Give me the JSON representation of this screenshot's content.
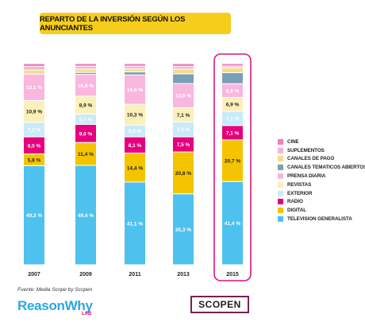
{
  "title": "REPARTO DE LA INVERSIÓN SEGÚN LOS ANUNCIANTES",
  "source": "Fuente: Media Scope by Scopen",
  "logos": {
    "reasonwhy": "ReasonWhy",
    "lab": "LAB",
    "scopen": "SCOPEN"
  },
  "legend": [
    {
      "name": "CINE",
      "color": "#f27db9"
    },
    {
      "name": "SUPLEMENTOS",
      "color": "#f7b2d3"
    },
    {
      "name": "CANALES DE PAGO",
      "color": "#f4dc8a"
    },
    {
      "name": "CANALES TEMATICOS ABIERTOS",
      "color": "#7a9fb8"
    },
    {
      "name": "PRENSA DIARIA",
      "color": "#f9b6de"
    },
    {
      "name": "REVISTAS",
      "color": "#fbf0b9"
    },
    {
      "name": "EXTERIOR",
      "color": "#c9eaf8"
    },
    {
      "name": "RADIO",
      "color": "#e6007e"
    },
    {
      "name": "DIGITAL",
      "color": "#f5c400"
    },
    {
      "name": "TELEVISION GENERALISTA",
      "color": "#4fc1ee"
    }
  ],
  "chart_data": {
    "type": "bar",
    "stacked": true,
    "normalized": true,
    "title": "REPARTO DE LA INVERSIÓN SEGÚN LOS ANUNCIANTES",
    "categories": [
      "2007",
      "2009",
      "2011",
      "2013",
      "2015"
    ],
    "highlight_category": "2015",
    "series": [
      {
        "name": "TELEVISION GENERALISTA",
        "color": "#4fc1ee",
        "values": [
          49.3,
          49.4,
          41.1,
          35.3,
          41.4
        ],
        "labels": [
          "49,3 %",
          "49,4 %",
          "41,1 %",
          "35,3 %",
          "41,4 %"
        ]
      },
      {
        "name": "DIGITAL",
        "color": "#f5c400",
        "values": [
          5.8,
          11.4,
          14.4,
          20.8,
          20.7
        ],
        "labels": [
          "5,8 %",
          "11,4 %",
          "14,4 %",
          "20,8 %",
          "20,7 %"
        ]
      },
      {
        "name": "RADIO",
        "color": "#e6007e",
        "values": [
          8.5,
          9.0,
          8.1,
          7.5,
          7.1
        ],
        "labels": [
          "8,5 %",
          "9,0 %",
          "8,1 %",
          "7,5 %",
          "7,1 %"
        ]
      },
      {
        "name": "EXTERIOR",
        "color": "#c9eaf8",
        "values": [
          7.2,
          5.1,
          5.9,
          7.4,
          7.1
        ],
        "labels": [
          "7,2 %",
          "5,1 %",
          "5,9 %",
          "7,4 %",
          "7,1 %"
        ]
      },
      {
        "name": "REVISTAS",
        "color": "#fbf0b9",
        "values": [
          10.9,
          8.9,
          10.3,
          7.1,
          6.9
        ],
        "labels": [
          "10,9 %",
          "8,9 %",
          "10,3 %",
          "7,1 %",
          "6,9 %"
        ]
      },
      {
        "name": "PRENSA DIARIA",
        "color": "#f9b6de",
        "values": [
          13.1,
          10.8,
          14.6,
          12.0,
          6.8
        ],
        "labels": [
          "13,1 %",
          "10,8 %",
          "14,6 %",
          "12,0 %",
          "6,8 %"
        ]
      },
      {
        "name": "CANALES TEMATICOS ABIERTOS",
        "color": "#7a9fb8",
        "values": [
          0.0,
          1.0,
          1.5,
          4.8,
          5.5
        ],
        "labels": [
          "",
          "",
          "",
          "",
          ""
        ]
      },
      {
        "name": "CANALES DE PAGO",
        "color": "#f4dc8a",
        "values": [
          2.0,
          1.7,
          1.5,
          2.4,
          2.4
        ],
        "labels": [
          "",
          "",
          "",
          "",
          ""
        ]
      },
      {
        "name": "SUPLEMENTOS",
        "color": "#f7b2d3",
        "values": [
          1.8,
          1.4,
          1.3,
          1.3,
          0.9
        ],
        "labels": [
          "",
          "",
          "",
          "",
          ""
        ]
      },
      {
        "name": "CINE",
        "color": "#f27db9",
        "values": [
          1.4,
          1.3,
          1.3,
          1.4,
          1.2
        ],
        "labels": [
          "",
          "",
          "",
          "",
          ""
        ]
      }
    ],
    "ylim": [
      0,
      100
    ],
    "legend_position": "right"
  }
}
